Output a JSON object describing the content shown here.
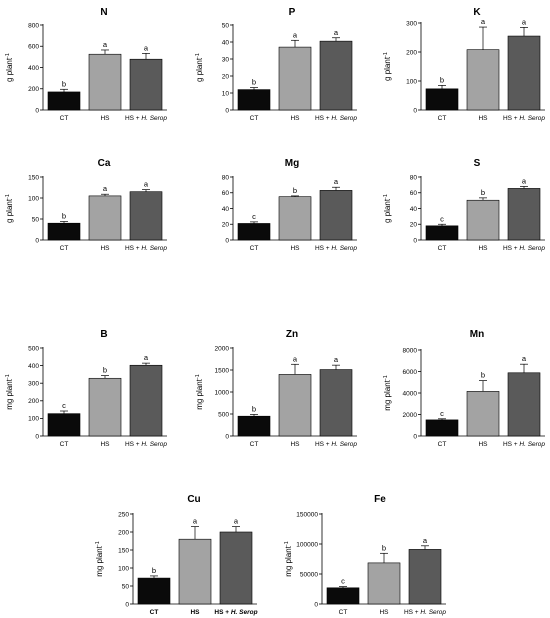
{
  "colors": {
    "CT": "#0a0a0a",
    "HS": "#a3a3a3",
    "HS_HSerop": "#5a5a5a",
    "axis": "#000000"
  },
  "chart_data": [
    {
      "type": "bar",
      "title": "N",
      "categories": [
        "CT",
        "HS",
        "HS + H. Serop"
      ],
      "values": [
        170,
        525,
        478
      ],
      "errors": [
        25,
        40,
        55
      ],
      "letters": [
        "b",
        "a",
        "a"
      ],
      "ylabel": "g plant-1",
      "ylim": [
        0,
        800
      ],
      "yticks": [
        0,
        200,
        400,
        600,
        800
      ],
      "category_labels_bold": false
    },
    {
      "type": "bar",
      "title": "P",
      "categories": [
        "CT",
        "HS",
        "HS + H. Serop"
      ],
      "values": [
        12,
        37,
        40.5
      ],
      "errors": [
        1.2,
        4,
        2
      ],
      "letters": [
        "b",
        "a",
        "a"
      ],
      "ylabel": "g plant-1",
      "ylim": [
        0,
        50
      ],
      "yticks": [
        0,
        10,
        20,
        30,
        40,
        50
      ],
      "category_labels_bold": false
    },
    {
      "type": "bar",
      "title": "K",
      "categories": [
        "CT",
        "HS",
        "HS + H. Serop"
      ],
      "values": [
        73,
        208,
        255
      ],
      "errors": [
        12,
        78,
        30
      ],
      "letters": [
        "b",
        "a",
        "a"
      ],
      "ylabel": "g plant-1",
      "ylim": [
        0,
        300
      ],
      "yticks": [
        0,
        100,
        200,
        300
      ],
      "category_labels_bold": false
    },
    {
      "type": "bar",
      "title": "Ca",
      "categories": [
        "CT",
        "HS",
        "HS + H. Serop"
      ],
      "values": [
        40,
        105,
        115
      ],
      "errors": [
        4,
        4,
        5
      ],
      "letters": [
        "b",
        "a",
        "a"
      ],
      "ylabel": "g plant-1",
      "ylim": [
        0,
        150
      ],
      "yticks": [
        0,
        50,
        100,
        150
      ],
      "category_labels_bold": false
    },
    {
      "type": "bar",
      "title": "Mg",
      "categories": [
        "CT",
        "HS",
        "HS + H. Serop"
      ],
      "values": [
        21,
        55,
        63
      ],
      "errors": [
        2,
        1,
        4
      ],
      "letters": [
        "c",
        "b",
        "a"
      ],
      "ylabel": "",
      "ylim": [
        0,
        80
      ],
      "yticks": [
        0,
        20,
        40,
        60,
        80
      ],
      "category_labels_bold": false
    },
    {
      "type": "bar",
      "title": "S",
      "categories": [
        "CT",
        "HS",
        "HS + H. Serop"
      ],
      "values": [
        18,
        50.5,
        65.5
      ],
      "errors": [
        2,
        3,
        2.5
      ],
      "letters": [
        "c",
        "b",
        "a"
      ],
      "ylabel": "g plant-1",
      "ylim": [
        0,
        80
      ],
      "yticks": [
        0,
        20,
        40,
        60,
        80
      ],
      "category_labels_bold": false
    },
    {
      "type": "bar",
      "title": "B",
      "categories": [
        "CT",
        "HS",
        "HS + H. Serop"
      ],
      "values": [
        127,
        328,
        402
      ],
      "errors": [
        15,
        15,
        12
      ],
      "letters": [
        "c",
        "b",
        "a"
      ],
      "ylabel": "mg plant-1",
      "ylim": [
        0,
        500
      ],
      "yticks": [
        0,
        100,
        200,
        300,
        400,
        500
      ],
      "category_labels_bold": false
    },
    {
      "type": "bar",
      "title": "Zn",
      "categories": [
        "CT",
        "HS",
        "HS + H. Serop"
      ],
      "values": [
        450,
        1400,
        1510
      ],
      "errors": [
        40,
        230,
        100
      ],
      "letters": [
        "b",
        "a",
        "a"
      ],
      "ylabel": "mg plant-1",
      "ylim": [
        0,
        2000
      ],
      "yticks": [
        0,
        500,
        1000,
        1500,
        2000
      ],
      "category_labels_bold": false
    },
    {
      "type": "bar",
      "title": "Mn",
      "categories": [
        "CT",
        "HS",
        "HS + H. Serop"
      ],
      "values": [
        1500,
        4150,
        5880
      ],
      "errors": [
        100,
        1000,
        800
      ],
      "letters": [
        "c",
        "b",
        "a"
      ],
      "ylabel": "mg plant-1",
      "ylim": [
        0,
        8000
      ],
      "yticks": [
        0,
        2000,
        4000,
        6000,
        8000
      ],
      "category_labels_bold": false
    },
    {
      "type": "bar",
      "title": "Cu",
      "categories": [
        "CT",
        "HS",
        "HS + H. Serop"
      ],
      "values": [
        72,
        180,
        200
      ],
      "errors": [
        6,
        35,
        15
      ],
      "letters": [
        "b",
        "a",
        "a"
      ],
      "ylabel": "mg plant-1",
      "ylim": [
        0,
        250
      ],
      "yticks": [
        0,
        50,
        100,
        150,
        200,
        250
      ],
      "category_labels_bold": true
    },
    {
      "type": "bar",
      "title": "Fe",
      "categories": [
        "CT",
        "HS",
        "HS + H. Serop"
      ],
      "values": [
        27000,
        68500,
        91000
      ],
      "errors": [
        2000,
        16000,
        6000
      ],
      "letters": [
        "c",
        "b",
        "a"
      ],
      "ylabel": "mg plant-1",
      "ylim": [
        0,
        150000
      ],
      "yticks": [
        0,
        50000,
        100000,
        150000
      ],
      "category_labels_bold": false
    }
  ]
}
